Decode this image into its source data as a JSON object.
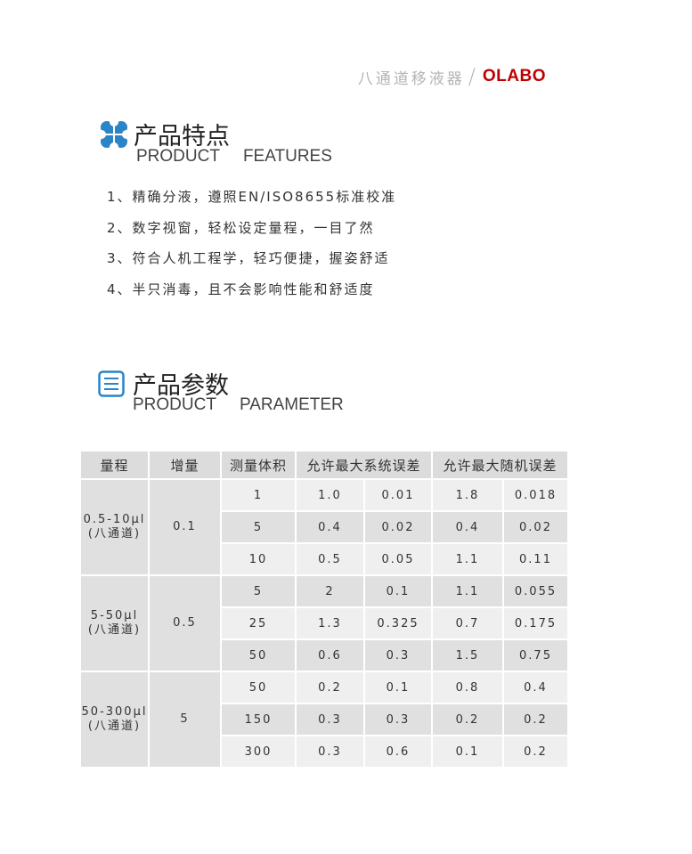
{
  "header": {
    "product_name": "八通道移液器",
    "separator": "/",
    "brand": "OLABO",
    "brand_color": "#c00000"
  },
  "features": {
    "title": "产品特点",
    "en_1": "PRODUCT",
    "en_2": "FEATURES",
    "icon": "four-petal-icon",
    "icon_color": "#2a84c6",
    "items": [
      "1、精确分液，遵照EN/ISO8655标准校准",
      "2、数字视窗，轻松设定量程，一目了然",
      "3、符合人机工程学，轻巧便捷，握姿舒适",
      "4、半只消毒，且不会影响性能和舒适度"
    ]
  },
  "parameters": {
    "title": "产品参数",
    "en_1": "PRODUCT",
    "en_2": "PARAMETER",
    "icon": "list-icon",
    "table": {
      "headers": [
        "量程",
        "增量",
        "测量体积",
        "允许最大系统误差",
        "允许最大随机误差"
      ],
      "groups": [
        {
          "range": "0.5-10μl",
          "channel": "(八通道)",
          "increment": "0.1",
          "rows": [
            [
              "1",
              "1.0",
              "0.01",
              "1.8",
              "0.018"
            ],
            [
              "5",
              "0.4",
              "0.02",
              "0.4",
              "0.02"
            ],
            [
              "10",
              "0.5",
              "0.05",
              "1.1",
              "0.11"
            ]
          ]
        },
        {
          "range": "5-50μl",
          "channel": "(八通道)",
          "increment": "0.5",
          "rows": [
            [
              "5",
              "2",
              "0.1",
              "1.1",
              "0.055"
            ],
            [
              "25",
              "1.3",
              "0.325",
              "0.7",
              "0.175"
            ],
            [
              "50",
              "0.6",
              "0.3",
              "1.5",
              "0.75"
            ]
          ]
        },
        {
          "range": "50-300μl",
          "channel": "(八通道)",
          "increment": "5",
          "rows": [
            [
              "50",
              "0.2",
              "0.1",
              "0.8",
              "0.4"
            ],
            [
              "150",
              "0.3",
              "0.3",
              "0.2",
              "0.2"
            ],
            [
              "300",
              "0.3",
              "0.6",
              "0.1",
              "0.2"
            ]
          ]
        }
      ]
    }
  }
}
